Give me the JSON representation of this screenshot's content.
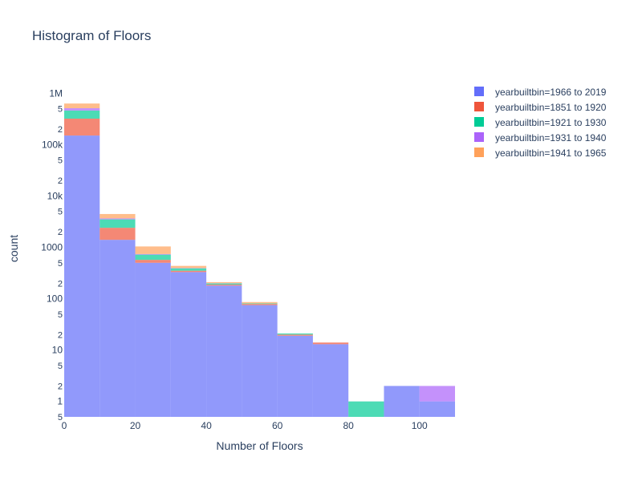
{
  "chart_data": {
    "type": "bar",
    "title": "Histogram of Floors",
    "xlabel": "Number of Floors",
    "ylabel": "count",
    "barmode": "stack",
    "y_scale": "log",
    "xlim": [
      0,
      110
    ],
    "x_ticks": [
      0,
      20,
      40,
      60,
      80,
      100
    ],
    "y_tick_labels": [
      "1",
      "10",
      "100",
      "1000",
      "10k",
      "100k",
      "1M"
    ],
    "y_minor_labels": [
      "2",
      "5"
    ],
    "bin_width": 10,
    "bins": [
      0,
      10,
      20,
      30,
      40,
      50,
      60,
      70,
      80,
      90,
      100
    ],
    "legend_position": "right",
    "series": [
      {
        "name": "yearbuiltbin=1966 to 2019",
        "color": "#636efa",
        "values": [
          150000,
          1400,
          500,
          330,
          180,
          75,
          19,
          13,
          0,
          2,
          1
        ]
      },
      {
        "name": "yearbuiltbin=1851 to 1920",
        "color": "#EF553B",
        "values": [
          170000,
          1000,
          70,
          20,
          8,
          4,
          1,
          1,
          0,
          0,
          0
        ]
      },
      {
        "name": "yearbuiltbin=1921 to 1930",
        "color": "#00cc96",
        "values": [
          140000,
          1100,
          150,
          40,
          10,
          2,
          1,
          0,
          1,
          0,
          0
        ]
      },
      {
        "name": "yearbuiltbin=1931 to 1940",
        "color": "#ab63fa",
        "values": [
          50000,
          150,
          20,
          5,
          2,
          0,
          0,
          0,
          0,
          0,
          1
        ]
      },
      {
        "name": "yearbuiltbin=1941 to 1965",
        "color": "#FFA15A",
        "values": [
          120000,
          800,
          300,
          40,
          10,
          5,
          0,
          0,
          0,
          0,
          0
        ]
      }
    ]
  }
}
